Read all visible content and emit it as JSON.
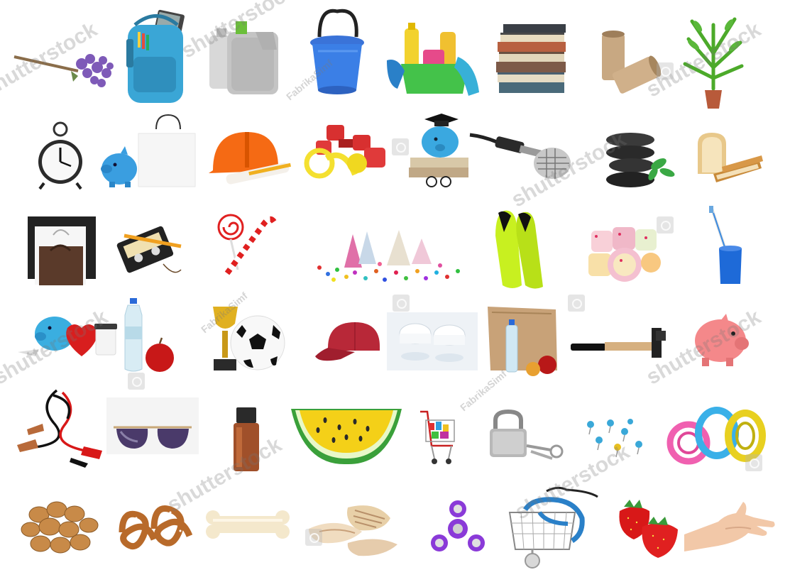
{
  "watermarks": {
    "brand": "shutterstock",
    "contributor": "FabrikaSimf"
  },
  "colors": {
    "background": "#ffffff",
    "watermark": "#787878"
  },
  "objects": [
    "lavender-bouquet",
    "school-backpack",
    "motor-oil-canisters",
    "blue-bucket",
    "cleaning-supplies-basin",
    "book-stack",
    "toilet-paper-tubes",
    "potted-palm",
    "alarm-clock",
    "piggy-bank-and-shopping-bag",
    "safety-helmet-with-blueprints",
    "dumbbells-and-tape-measure",
    "piggy-bank-graduation-cap",
    "vintage-microphone",
    "spa-stones-with-mint",
    "sliced-bread",
    "shopping-bags",
    "cassette-tape-with-pencil",
    "lollipop-and-candy-cane",
    "party-hats-and-confetti",
    "swimming-flippers",
    "turkish-delight",
    "toothbrush-in-cup",
    "piggy-bank-heart-coffee",
    "water-bottle-and-apple",
    "trophy-and-soccer-ball",
    "red-cap",
    "contact-lens-case",
    "paper-lunch-bag",
    "hammer",
    "pink-piggy-bank",
    "jumper-cables",
    "sunglasses",
    "essential-oil-bottle",
    "yellow-watermelon-slice",
    "shopping-cart",
    "padlock-with-keys",
    "push-pins",
    "wire-coils",
    "walnuts",
    "pretzels",
    "dog-bone",
    "seashells",
    "fidget-spinner",
    "shopping-basket-stethoscope",
    "strawberries",
    "open-hand"
  ]
}
